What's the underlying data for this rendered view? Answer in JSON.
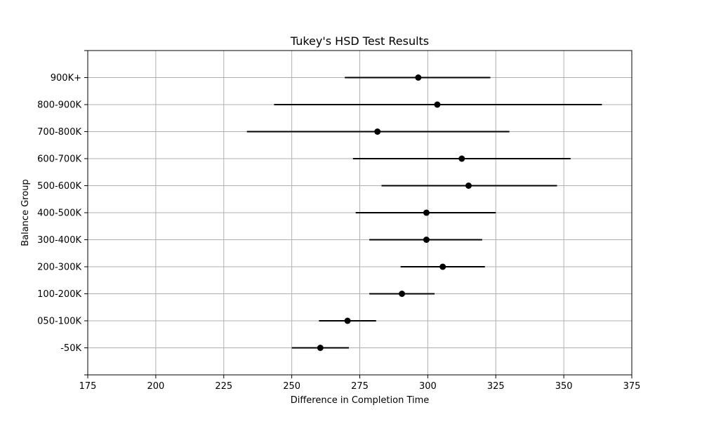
{
  "chart_data": {
    "type": "errorbar",
    "title": "Tukey's HSD Test Results",
    "xlabel": "Difference in Completion Time",
    "ylabel": "Balance Group",
    "xlim": [
      175,
      375
    ],
    "xticks": [
      175,
      200,
      225,
      250,
      275,
      300,
      325,
      350,
      375
    ],
    "grid": true,
    "categories": [
      "-50K",
      "050-100K",
      "100-200K",
      "200-300K",
      "300-400K",
      "400-500K",
      "500-600K",
      "600-700K",
      "700-800K",
      "800-900K",
      "900K+"
    ],
    "series": [
      {
        "means": [
          260.5,
          270.5,
          290.5,
          305.5,
          299.5,
          299.5,
          315.0,
          312.5,
          281.5,
          303.5,
          296.5
        ],
        "lower": [
          250.0,
          260.0,
          278.5,
          290.0,
          278.5,
          273.5,
          283.0,
          272.5,
          233.5,
          243.5,
          269.5
        ],
        "upper": [
          271.0,
          281.0,
          302.5,
          321.0,
          320.0,
          325.0,
          347.5,
          352.5,
          330.0,
          364.0,
          323.0
        ]
      }
    ],
    "colors": {
      "marker": "#000000",
      "grid": "#b0b0b0",
      "axis": "#000000"
    }
  }
}
